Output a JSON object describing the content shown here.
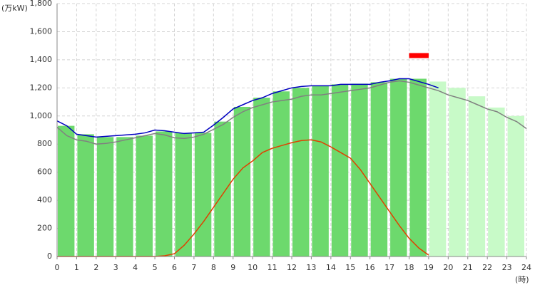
{
  "chart_data": {
    "type": "bar",
    "y_unit": "(万kW)",
    "x_unit": "(時)",
    "xlim": [
      0,
      24
    ],
    "xticks": [
      0,
      1,
      2,
      3,
      4,
      5,
      6,
      7,
      8,
      9,
      10,
      11,
      12,
      13,
      14,
      15,
      16,
      17,
      18,
      19,
      20,
      21,
      22,
      23,
      24
    ],
    "ylim": [
      0,
      1800
    ],
    "yticks": [
      0,
      200,
      400,
      600,
      800,
      {
        "value": 1000,
        "label": "1,000"
      },
      {
        "value": 1200,
        "label": "1,200"
      },
      {
        "value": 1400,
        "label": "1,400"
      },
      {
        "value": 1600,
        "label": "1,600"
      },
      {
        "value": 1800,
        "label": "1,800"
      }
    ],
    "grid": true,
    "series": [
      {
        "type": "bar",
        "color": "#6dd96d",
        "x": [
          0,
          1,
          2,
          3,
          4,
          5,
          6,
          7,
          8,
          9,
          10,
          11,
          12,
          13,
          14,
          15,
          16,
          17,
          18
        ],
        "values": [
          930,
          870,
          850,
          850,
          860,
          890,
          880,
          880,
          960,
          1065,
          1130,
          1175,
          1200,
          1215,
          1225,
          1230,
          1240,
          1265,
          1265
        ]
      },
      {
        "type": "bar",
        "color": "#c8fac8",
        "x": [
          19,
          20,
          21,
          22,
          23
        ],
        "values": [
          1245,
          1200,
          1140,
          1060,
          1000
        ]
      },
      {
        "type": "line",
        "color": "#808080",
        "x": [
          0,
          0.5,
          1,
          1.5,
          2,
          2.5,
          3,
          3.5,
          4,
          4.5,
          5,
          5.5,
          6,
          6.5,
          7,
          7.5,
          8,
          8.5,
          9,
          9.5,
          10,
          10.5,
          11,
          11.5,
          12,
          12.5,
          13,
          13.5,
          14,
          14.5,
          15,
          15.5,
          16,
          16.5,
          17,
          17.5,
          18,
          18.5,
          19,
          19.5,
          20,
          20.5,
          21,
          21.5,
          22,
          22.5,
          23,
          23.5,
          24
        ],
        "values": [
          920,
          860,
          830,
          820,
          800,
          805,
          815,
          830,
          845,
          860,
          875,
          865,
          845,
          840,
          850,
          870,
          905,
          940,
          990,
          1030,
          1060,
          1080,
          1100,
          1110,
          1120,
          1140,
          1150,
          1150,
          1160,
          1170,
          1180,
          1190,
          1200,
          1220,
          1240,
          1250,
          1240,
          1220,
          1200,
          1180,
          1150,
          1130,
          1110,
          1080,
          1050,
          1030,
          990,
          960,
          910
        ]
      },
      {
        "type": "line",
        "color": "#0000c0",
        "x": [
          0,
          0.5,
          1,
          1.5,
          2,
          2.5,
          3,
          3.5,
          4,
          4.5,
          5,
          5.5,
          6,
          6.5,
          7,
          7.5,
          8,
          8.5,
          9,
          9.5,
          10,
          10.5,
          11,
          11.5,
          12,
          12.5,
          13,
          13.5,
          14,
          14.5,
          15,
          15.5,
          16,
          16.5,
          17,
          17.5,
          18,
          18.5,
          19,
          19.5
        ],
        "values": [
          965,
          930,
          870,
          860,
          850,
          855,
          860,
          865,
          870,
          880,
          900,
          895,
          885,
          875,
          880,
          885,
          935,
          990,
          1050,
          1080,
          1110,
          1130,
          1160,
          1180,
          1200,
          1210,
          1215,
          1215,
          1215,
          1225,
          1225,
          1225,
          1225,
          1240,
          1250,
          1265,
          1265,
          1245,
          1225,
          1200
        ]
      },
      {
        "type": "line",
        "color": "#e04000",
        "x": [
          0,
          0.5,
          1,
          1.5,
          2,
          2.5,
          3,
          3.5,
          4,
          4.5,
          5,
          5.5,
          6,
          6.5,
          7,
          7.5,
          8,
          8.5,
          9,
          9.5,
          10,
          10.5,
          11,
          11.5,
          12,
          12.5,
          13,
          13.5,
          14,
          14.5,
          15,
          15.5,
          16,
          16.5,
          17,
          17.5,
          18,
          18.5,
          19
        ],
        "values": [
          0,
          0,
          0,
          0,
          0,
          0,
          0,
          0,
          0,
          0,
          0,
          5,
          20,
          80,
          160,
          250,
          350,
          450,
          550,
          630,
          680,
          740,
          770,
          790,
          810,
          825,
          830,
          815,
          780,
          740,
          700,
          620,
          520,
          420,
          320,
          220,
          130,
          60,
          10
        ]
      }
    ],
    "marker": {
      "x_start": 18,
      "x_end": 19,
      "value": 1430,
      "color": "#ff0000"
    }
  }
}
